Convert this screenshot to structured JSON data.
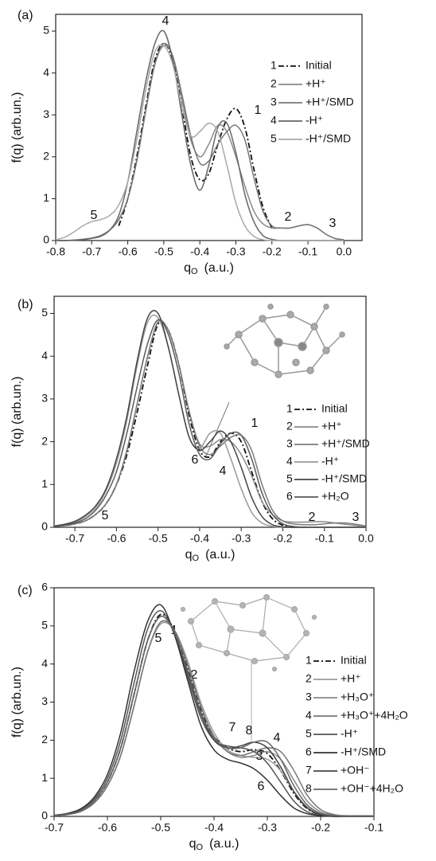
{
  "chart_data": [
    {
      "type": "line",
      "title": "(a)",
      "xlabel": {
        "text": "q",
        "sub": "O",
        "unit": "(a.u.)"
      },
      "ylabel": "f(q)  (arb.un.)",
      "xlim": [
        -0.8,
        0.05
      ],
      "ylim": [
        0,
        5.4
      ],
      "xticks": [
        -0.8,
        -0.7,
        -0.6,
        -0.5,
        -0.4,
        -0.3,
        -0.2,
        -0.1,
        {
          "value": 0,
          "label": "0.0"
        }
      ],
      "yticks": [
        0,
        1,
        2,
        3,
        4,
        5
      ],
      "x": [
        -0.8,
        -0.775,
        -0.75,
        -0.725,
        -0.7,
        -0.675,
        -0.65,
        -0.625,
        -0.6,
        -0.575,
        -0.55,
        -0.525,
        -0.5,
        -0.475,
        -0.45,
        -0.425,
        -0.4,
        -0.375,
        -0.35,
        -0.325,
        -0.3,
        -0.275,
        -0.25,
        -0.225,
        -0.2,
        -0.175,
        -0.15,
        -0.125,
        -0.1,
        -0.075,
        -0.05,
        -0.025,
        0
      ],
      "series": [
        {
          "label": "1",
          "name": "Initial",
          "color": "#111111",
          "linestyle": "dashdot",
          "values": [
            null,
            null,
            null,
            null,
            null,
            null,
            null,
            0.35,
            1.0,
            2.0,
            3.2,
            4.3,
            4.7,
            4.3,
            3.2,
            2.0,
            1.45,
            1.6,
            2.3,
            2.9,
            3.15,
            2.7,
            1.7,
            0.8,
            0.3,
            null,
            null,
            null,
            null,
            null,
            null,
            null,
            null
          ]
        },
        {
          "label": "2",
          "name": "+H⁺",
          "color": "#8a8a8a",
          "linestyle": "solid",
          "values": [
            0,
            0,
            0.01,
            0.03,
            0.06,
            0.12,
            0.25,
            0.5,
            1.0,
            1.9,
            3.1,
            4.2,
            4.65,
            4.4,
            3.4,
            2.4,
            2.0,
            2.3,
            2.75,
            2.6,
            2.0,
            1.3,
            0.7,
            0.4,
            0.3,
            0.3,
            0.3,
            0.35,
            0.38,
            0.3,
            0.15,
            0.05,
            0.02
          ]
        },
        {
          "label": "3",
          "name": "+H⁺/SMD",
          "color": "#787878",
          "linestyle": "solid",
          "values": [
            0,
            0,
            0.01,
            0.03,
            0.06,
            0.12,
            0.25,
            0.5,
            1.0,
            1.9,
            3.1,
            4.2,
            4.7,
            4.4,
            3.5,
            2.5,
            1.85,
            1.9,
            2.3,
            2.6,
            2.75,
            2.4,
            1.5,
            0.7,
            0.35,
            0.3,
            0.3,
            0.35,
            0.38,
            0.3,
            0.15,
            0.05,
            0.02
          ]
        },
        {
          "label": "4",
          "name": "-H⁺",
          "color": "#666666",
          "linestyle": "solid",
          "values": [
            0,
            0,
            0.01,
            0.02,
            0.05,
            0.1,
            0.25,
            0.6,
            1.4,
            2.6,
            3.8,
            4.7,
            5.0,
            4.3,
            3.0,
            1.8,
            1.2,
            1.8,
            2.7,
            2.8,
            2.1,
            1.1,
            0.45,
            0.12,
            0.03,
            0,
            0,
            0,
            0,
            0,
            0,
            0,
            0
          ]
        },
        {
          "label": "5",
          "name": "-H⁺/SMD",
          "color": "#a8a8a8",
          "linestyle": "solid",
          "values": [
            0.02,
            0.08,
            0.2,
            0.35,
            0.45,
            0.5,
            0.6,
            0.85,
            1.4,
            2.4,
            3.6,
            4.5,
            4.65,
            4.2,
            3.2,
            2.5,
            2.6,
            2.8,
            2.6,
            1.8,
            0.9,
            0.35,
            0.1,
            0.02,
            0,
            0,
            0,
            0,
            0,
            0,
            0,
            0,
            0
          ]
        }
      ]
    },
    {
      "type": "line",
      "title": "(b)",
      "xlabel": {
        "text": "q",
        "sub": "O",
        "unit": "(a.u.)"
      },
      "ylabel": "f(q)  (arb.un.)",
      "xlim": [
        -0.75,
        0
      ],
      "ylim": [
        0,
        5.4
      ],
      "xticks": [
        -0.7,
        -0.6,
        -0.5,
        -0.4,
        -0.3,
        -0.2,
        -0.1,
        {
          "value": 0,
          "label": "0.0"
        }
      ],
      "yticks": [
        0,
        1,
        2,
        3,
        4,
        5
      ],
      "x": [
        -0.75,
        -0.725,
        -0.7,
        -0.675,
        -0.65,
        -0.625,
        -0.6,
        -0.575,
        -0.55,
        -0.525,
        -0.5,
        -0.475,
        -0.45,
        -0.425,
        -0.4,
        -0.375,
        -0.35,
        -0.325,
        -0.3,
        -0.275,
        -0.25,
        -0.225,
        -0.2,
        -0.175,
        -0.15,
        -0.125,
        -0.1,
        -0.075,
        -0.05,
        -0.025,
        0
      ],
      "series": [
        {
          "label": "1",
          "name": "Initial",
          "color": "#111111",
          "linestyle": "dashdot",
          "values": [
            0.02,
            0.04,
            0.08,
            0.15,
            0.3,
            0.55,
            1.0,
            1.7,
            2.7,
            3.8,
            4.75,
            4.6,
            3.8,
            2.6,
            1.8,
            1.65,
            2.0,
            2.2,
            2.0,
            1.3,
            0.6,
            0.2,
            0.05,
            0,
            0,
            0,
            0,
            0,
            0,
            0,
            0
          ]
        },
        {
          "label": "2",
          "name": "+H⁺",
          "color": "#8a8a8a",
          "linestyle": "solid",
          "values": [
            0.02,
            0.04,
            0.08,
            0.15,
            0.3,
            0.55,
            1.0,
            1.8,
            2.9,
            4.0,
            4.8,
            4.6,
            3.8,
            2.7,
            1.95,
            1.9,
            2.05,
            2.0,
            1.7,
            1.2,
            0.6,
            0.3,
            0.15,
            0.12,
            0.12,
            0.13,
            0.13,
            0.1,
            0.07,
            0.04,
            0.02
          ]
        },
        {
          "label": "3",
          "name": "+H⁺/SMD",
          "color": "#7a7a7a",
          "linestyle": "solid",
          "values": [
            0.02,
            0.04,
            0.08,
            0.15,
            0.3,
            0.55,
            1.0,
            1.8,
            2.9,
            4.0,
            4.8,
            4.6,
            3.8,
            2.7,
            1.9,
            1.7,
            1.9,
            2.1,
            2.15,
            1.8,
            1.0,
            0.4,
            0.15,
            0.08,
            0.06,
            0.06,
            0.08,
            0.1,
            0.1,
            0.07,
            0.03
          ]
        },
        {
          "label": "4",
          "name": "-H⁺",
          "color": "#9a9a9a",
          "linestyle": "solid",
          "values": [
            0.03,
            0.06,
            0.12,
            0.25,
            0.45,
            0.85,
            1.5,
            2.5,
            3.8,
            4.8,
            4.9,
            4.2,
            3.1,
            2.1,
            1.85,
            2.2,
            2.2,
            1.6,
            0.9,
            0.35,
            0.1,
            0.02,
            0,
            0,
            0,
            0,
            0,
            0,
            0,
            0,
            0
          ]
        },
        {
          "label": "5",
          "name": "-H⁺/SMD",
          "color": "#444444",
          "linestyle": "solid",
          "values": [
            0.03,
            0.07,
            0.14,
            0.28,
            0.5,
            0.9,
            1.6,
            2.6,
            3.9,
            4.9,
            5.0,
            4.2,
            3.1,
            2.1,
            1.8,
            2.0,
            2.25,
            2.0,
            1.4,
            0.7,
            0.25,
            0.06,
            0.01,
            0,
            0,
            0,
            0,
            0,
            0,
            0,
            0
          ]
        },
        {
          "label": "6",
          "name": "+H₂O",
          "color": "#5a5a5a",
          "linestyle": "solid",
          "values": [
            0.02,
            0.05,
            0.1,
            0.2,
            0.4,
            0.75,
            1.3,
            2.2,
            3.3,
            4.3,
            4.85,
            4.5,
            3.6,
            2.4,
            1.7,
            1.6,
            1.95,
            2.2,
            2.15,
            1.6,
            0.8,
            0.3,
            0.08,
            0.02,
            0,
            0,
            0,
            0,
            0,
            0,
            0
          ]
        }
      ]
    },
    {
      "type": "line",
      "title": "(c)",
      "xlabel": {
        "text": "q",
        "sub": "O",
        "unit": "(a.u.)"
      },
      "ylabel": "f(q)  (arb.un.)",
      "xlim": [
        -0.7,
        -0.1
      ],
      "ylim": [
        0,
        6
      ],
      "xticks": [
        -0.7,
        -0.6,
        -0.5,
        -0.4,
        -0.3,
        -0.2,
        -0.1
      ],
      "yticks": [
        0,
        1,
        2,
        3,
        4,
        5,
        6
      ],
      "x": [
        -0.7,
        -0.675,
        -0.65,
        -0.625,
        -0.6,
        -0.575,
        -0.55,
        -0.525,
        -0.5,
        -0.475,
        -0.45,
        -0.425,
        -0.4,
        -0.375,
        -0.35,
        -0.325,
        -0.3,
        -0.275,
        -0.25,
        -0.225,
        -0.2,
        -0.175,
        -0.15,
        -0.125,
        -0.1
      ],
      "series": [
        {
          "label": "1",
          "name": "Initial",
          "color": "#111111",
          "linestyle": "dashdot",
          "values": [
            0.02,
            0.06,
            0.15,
            0.4,
            0.9,
            1.8,
            3.2,
            4.6,
            5.3,
            4.9,
            3.9,
            2.8,
            2.1,
            1.8,
            1.7,
            1.75,
            1.65,
            1.2,
            0.6,
            0.2,
            0.05,
            0.01,
            0,
            0,
            0
          ]
        },
        {
          "label": "2",
          "name": "+H⁺",
          "color": "#9a9a9a",
          "linestyle": "solid",
          "values": [
            0.02,
            0.05,
            0.13,
            0.35,
            0.8,
            1.6,
            2.9,
            4.3,
            5.05,
            4.9,
            4.1,
            3.0,
            2.2,
            1.75,
            1.6,
            1.55,
            1.5,
            1.2,
            0.65,
            0.25,
            0.08,
            0.03,
            0.02,
            0.02,
            0.02
          ]
        },
        {
          "label": "3",
          "name": "+H₃O⁺",
          "color": "#8a8a8a",
          "linestyle": "solid",
          "values": [
            0.02,
            0.05,
            0.13,
            0.35,
            0.8,
            1.6,
            2.9,
            4.3,
            5.1,
            4.9,
            4.0,
            2.9,
            2.1,
            1.7,
            1.55,
            1.6,
            1.7,
            1.5,
            0.95,
            0.4,
            0.12,
            0.03,
            0.01,
            0.01,
            0.01
          ]
        },
        {
          "label": "4",
          "name": "+H₃O⁺+4H₂O",
          "color": "#777777",
          "linestyle": "solid",
          "values": [
            0.02,
            0.05,
            0.13,
            0.35,
            0.8,
            1.6,
            2.9,
            4.3,
            5.1,
            4.9,
            4.0,
            2.9,
            2.1,
            1.7,
            1.6,
            1.7,
            1.8,
            1.7,
            1.2,
            0.55,
            0.18,
            0.05,
            0.01,
            0,
            0
          ]
        },
        {
          "label": "5",
          "name": "-H⁺",
          "color": "#555555",
          "linestyle": "solid",
          "values": [
            0.03,
            0.07,
            0.18,
            0.45,
            1.0,
            2.0,
            3.5,
            4.9,
            5.4,
            4.8,
            3.7,
            2.6,
            2.0,
            1.85,
            1.8,
            1.7,
            1.4,
            0.9,
            0.4,
            0.12,
            0.03,
            0,
            0,
            0,
            0
          ]
        },
        {
          "label": "6",
          "name": "-H⁺/SMD",
          "color": "#333333",
          "linestyle": "solid",
          "values": [
            0.03,
            0.08,
            0.2,
            0.5,
            1.1,
            2.2,
            3.8,
            5.1,
            5.55,
            4.8,
            3.6,
            2.4,
            1.75,
            1.5,
            1.4,
            1.25,
            0.95,
            0.55,
            0.22,
            0.07,
            0.02,
            0,
            0,
            0,
            0
          ]
        },
        {
          "label": "7",
          "name": "+OH⁻",
          "color": "#444444",
          "linestyle": "solid",
          "values": [
            0.02,
            0.06,
            0.15,
            0.4,
            0.9,
            1.8,
            3.2,
            4.6,
            5.25,
            4.85,
            3.8,
            2.7,
            2.0,
            1.8,
            1.85,
            1.95,
            1.8,
            1.3,
            0.65,
            0.22,
            0.05,
            0.01,
            0,
            0,
            0
          ]
        },
        {
          "label": "8",
          "name": "+OH⁻+4H₂O",
          "color": "#666666",
          "linestyle": "solid",
          "values": [
            0.02,
            0.06,
            0.15,
            0.4,
            0.9,
            1.8,
            3.2,
            4.6,
            5.25,
            4.85,
            3.85,
            2.75,
            2.05,
            1.8,
            1.8,
            1.95,
            1.95,
            1.5,
            0.8,
            0.3,
            0.08,
            0.02,
            0,
            0,
            0
          ]
        }
      ]
    }
  ]
}
